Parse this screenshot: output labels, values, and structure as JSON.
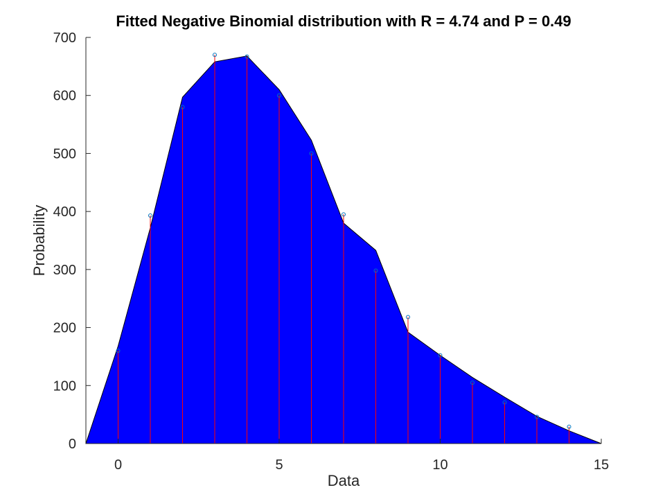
{
  "chart_data": {
    "type": "area",
    "title": "Fitted Negative Binomial distribution with R = 4.74 and P = 0.49",
    "xlabel": "Data",
    "ylabel": "Probability",
    "xlim": [
      -1,
      15
    ],
    "ylim": [
      0,
      700
    ],
    "xticks": [
      0,
      5,
      10,
      15
    ],
    "yticks": [
      0,
      100,
      200,
      300,
      400,
      500,
      600,
      700
    ],
    "grid": false,
    "fit_series": {
      "x": [
        -1,
        0,
        1,
        2,
        3,
        4,
        5,
        6,
        7,
        8,
        9,
        10,
        11,
        12,
        13,
        14,
        15
      ],
      "y": [
        0,
        168,
        372,
        597,
        658,
        668,
        610,
        523,
        380,
        333,
        192,
        152,
        114,
        80,
        47,
        22,
        0
      ],
      "color": "#0000ff"
    },
    "observed_series": {
      "x": [
        0,
        1,
        2,
        3,
        4,
        5,
        6,
        7,
        8,
        9,
        10,
        11,
        12,
        13,
        14
      ],
      "y": [
        160,
        393,
        580,
        670,
        667,
        600,
        500,
        395,
        298,
        218,
        152,
        105,
        71,
        46,
        29
      ],
      "stem_color": "#ff0000",
      "marker_color": "#0072bd"
    }
  }
}
